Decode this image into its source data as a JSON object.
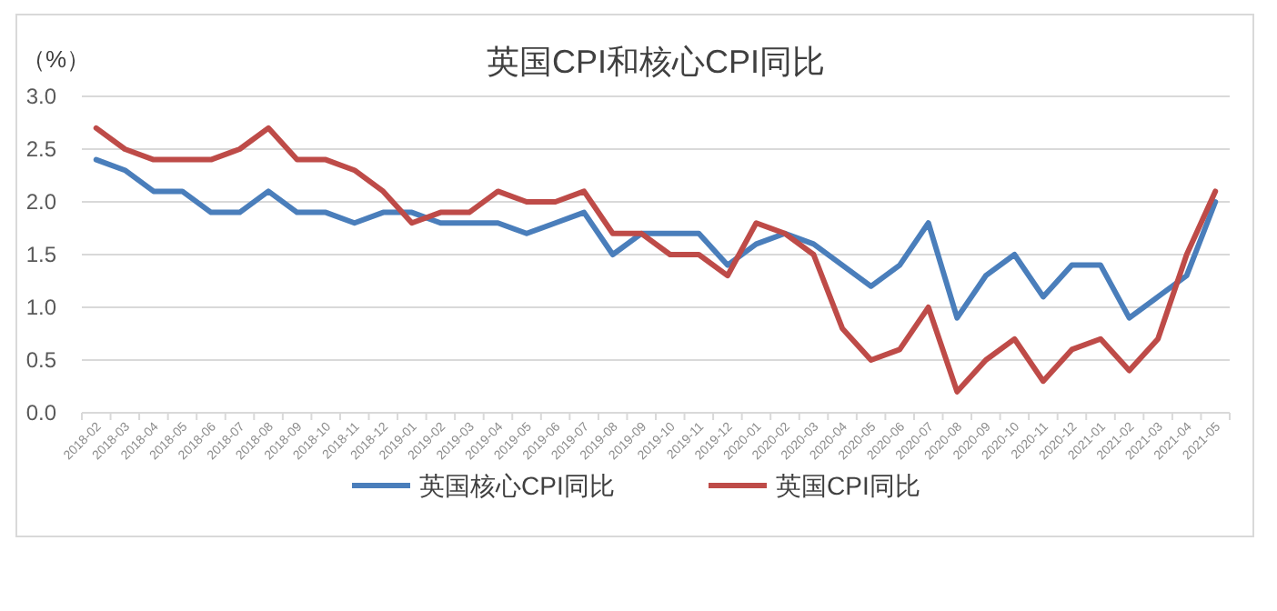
{
  "chart_data": {
    "type": "line",
    "title": "英国CPI和核心CPI同比",
    "ylabel": "（%）",
    "categories": [
      "2018-02",
      "2018-03",
      "2018-04",
      "2018-05",
      "2018-06",
      "2018-07",
      "2018-08",
      "2018-09",
      "2018-10",
      "2018-11",
      "2018-12",
      "2019-01",
      "2019-02",
      "2019-03",
      "2019-04",
      "2019-05",
      "2019-06",
      "2019-07",
      "2019-08",
      "2019-09",
      "2019-10",
      "2019-11",
      "2019-12",
      "2020-01",
      "2020-02",
      "2020-03",
      "2020-04",
      "2020-05",
      "2020-06",
      "2020-07",
      "2020-08",
      "2020-09",
      "2020-10",
      "2020-11",
      "2020-12",
      "2021-01",
      "2021-02",
      "2021-03",
      "2021-04",
      "2021-05"
    ],
    "series": [
      {
        "name": "英国核心CPI同比",
        "color": "#4a7ebb",
        "values": [
          2.4,
          2.3,
          2.1,
          2.1,
          1.9,
          1.9,
          2.1,
          1.9,
          1.9,
          1.8,
          1.9,
          1.9,
          1.8,
          1.8,
          1.8,
          1.7,
          1.8,
          1.9,
          1.5,
          1.7,
          1.7,
          1.7,
          1.4,
          1.6,
          1.7,
          1.6,
          1.4,
          1.2,
          1.4,
          1.8,
          0.9,
          1.3,
          1.5,
          1.1,
          1.4,
          1.4,
          0.9,
          1.1,
          1.3,
          2.0
        ]
      },
      {
        "name": "英国CPI同比",
        "color": "#be4b48",
        "values": [
          2.7,
          2.5,
          2.4,
          2.4,
          2.4,
          2.5,
          2.7,
          2.4,
          2.4,
          2.3,
          2.1,
          1.8,
          1.9,
          1.9,
          2.1,
          2.0,
          2.0,
          2.1,
          1.7,
          1.7,
          1.5,
          1.5,
          1.3,
          1.8,
          1.7,
          1.5,
          0.8,
          0.5,
          0.6,
          1.0,
          0.2,
          0.5,
          0.7,
          0.3,
          0.6,
          0.7,
          0.4,
          0.7,
          1.5,
          2.1
        ]
      }
    ],
    "ylim": [
      0,
      3
    ],
    "yticks": [
      {
        "value": 0,
        "label": "0.0"
      },
      {
        "value": 0.5,
        "label": "0.5"
      },
      {
        "value": 1,
        "label": "1.0"
      },
      {
        "value": 1.5,
        "label": "1.5"
      },
      {
        "value": 2,
        "label": "2.0"
      },
      {
        "value": 2.5,
        "label": "2.5"
      },
      {
        "value": 3,
        "label": "3.0"
      }
    ],
    "grid": "y",
    "legend": "bottom"
  }
}
